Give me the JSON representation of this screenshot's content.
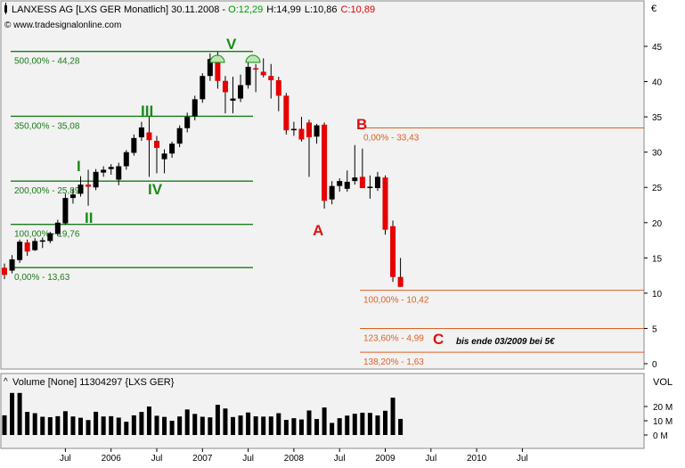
{
  "header": {
    "symbol_text": "LANXESS AG [LXS GER  Monatlich] 30.11.2008 - ",
    "open": "O:12,29",
    "high": "H:14,99",
    "low": "L:10,86",
    "close": "C:10,89",
    "source": "© www.tradesignalonline.com",
    "currency": "€"
  },
  "volume_panel": {
    "title": "Volume [None] 11304297 {LXS GER}",
    "axis_title": "VOL",
    "ticks": [
      "20 M",
      "10 M",
      "0 M"
    ]
  },
  "x_axis_labels": [
    "Jul",
    "2006",
    "Jul",
    "2007",
    "Jul",
    "2008",
    "Jul",
    "2009",
    "Jul",
    "2010",
    "Jul"
  ],
  "colors": {
    "up": "#000000",
    "down": "#e60000",
    "fib_left": "#1a7a1a",
    "fib_right": "#e06020",
    "wave_green": "#1a8a1a",
    "wave_red": "#dd1111",
    "panel_bg": "#f2f2f2"
  },
  "fib_left": [
    {
      "value": 44.28,
      "label": "500,00% - 44,28"
    },
    {
      "value": 35.08,
      "label": "350,00% - 35,08"
    },
    {
      "value": 25.89,
      "label": "200,00% - 25,89"
    },
    {
      "value": 19.76,
      "label": "100,00% - 19,76"
    },
    {
      "value": 13.63,
      "label": "0,00% - 13,63"
    }
  ],
  "fib_right": [
    {
      "value": 33.43,
      "label": "0,00% - 33,43"
    },
    {
      "value": 10.42,
      "label": "100,00% - 10,42"
    },
    {
      "value": 4.99,
      "label": "123,60% - 4,99"
    },
    {
      "value": 1.63,
      "label": "138,20% - 1,63"
    }
  ],
  "wave_labels_green": [
    "I",
    "II",
    "III",
    "IV",
    "V"
  ],
  "wave_labels_red": [
    "A",
    "B",
    "C"
  ],
  "note": "bis ende 03/2009 bei 5€",
  "chart_data": {
    "type": "candlestick",
    "price_axis": {
      "ylim": [
        0,
        46
      ],
      "ticks": [
        0,
        5,
        10,
        15,
        20,
        25,
        30,
        35,
        40,
        45
      ]
    },
    "ohlc": [
      {
        "o": 13.6,
        "h": 14.2,
        "l": 12.0,
        "c": 12.6
      },
      {
        "o": 13.2,
        "h": 15.4,
        "l": 12.8,
        "c": 14.8
      },
      {
        "o": 14.7,
        "h": 17.6,
        "l": 14.3,
        "c": 17.3
      },
      {
        "o": 17.2,
        "h": 17.6,
        "l": 15.3,
        "c": 15.9
      },
      {
        "o": 16.1,
        "h": 17.8,
        "l": 16.0,
        "c": 17.4
      },
      {
        "o": 17.3,
        "h": 17.9,
        "l": 16.4,
        "c": 17.5
      },
      {
        "o": 17.4,
        "h": 18.7,
        "l": 17.1,
        "c": 18.5
      },
      {
        "o": 18.4,
        "h": 20.4,
        "l": 18.1,
        "c": 20.0
      },
      {
        "o": 19.9,
        "h": 24.1,
        "l": 19.7,
        "c": 23.5
      },
      {
        "o": 23.5,
        "h": 24.8,
        "l": 22.7,
        "c": 24.0
      },
      {
        "o": 24.1,
        "h": 26.6,
        "l": 23.7,
        "c": 25.4
      },
      {
        "o": 25.4,
        "h": 27.5,
        "l": 22.4,
        "c": 25.1
      },
      {
        "o": 25.0,
        "h": 27.6,
        "l": 24.6,
        "c": 27.2
      },
      {
        "o": 27.1,
        "h": 28.0,
        "l": 26.5,
        "c": 27.5
      },
      {
        "o": 27.6,
        "h": 28.3,
        "l": 26.8,
        "c": 27.9
      },
      {
        "o": 26.1,
        "h": 28.5,
        "l": 25.3,
        "c": 28.0
      },
      {
        "o": 28.0,
        "h": 30.3,
        "l": 27.5,
        "c": 30.0
      },
      {
        "o": 29.9,
        "h": 32.5,
        "l": 29.5,
        "c": 32.0
      },
      {
        "o": 32.1,
        "h": 34.3,
        "l": 31.6,
        "c": 33.5
      },
      {
        "o": 32.8,
        "h": 35.0,
        "l": 26.5,
        "c": 31.7
      },
      {
        "o": 31.6,
        "h": 32.3,
        "l": 27.0,
        "c": 30.6
      },
      {
        "o": 29.0,
        "h": 30.4,
        "l": 27.0,
        "c": 29.8
      },
      {
        "o": 29.8,
        "h": 31.5,
        "l": 29.2,
        "c": 31.2
      },
      {
        "o": 31.2,
        "h": 33.8,
        "l": 30.7,
        "c": 33.4
      },
      {
        "o": 33.4,
        "h": 35.6,
        "l": 32.8,
        "c": 35.0
      },
      {
        "o": 35.1,
        "h": 38.0,
        "l": 34.5,
        "c": 37.5
      },
      {
        "o": 37.5,
        "h": 41.2,
        "l": 37.0,
        "c": 40.8
      },
      {
        "o": 40.8,
        "h": 44.0,
        "l": 40.1,
        "c": 43.2
      },
      {
        "o": 43.0,
        "h": 44.2,
        "l": 39.0,
        "c": 40.1
      },
      {
        "o": 40.1,
        "h": 40.8,
        "l": 35.5,
        "c": 38.5
      },
      {
        "o": 37.3,
        "h": 40.7,
        "l": 35.5,
        "c": 37.6
      },
      {
        "o": 37.6,
        "h": 41.0,
        "l": 37.1,
        "c": 39.5
      },
      {
        "o": 39.5,
        "h": 42.8,
        "l": 39.0,
        "c": 42.1
      },
      {
        "o": 41.9,
        "h": 42.5,
        "l": 38.5,
        "c": 41.7
      },
      {
        "o": 41.4,
        "h": 43.3,
        "l": 40.6,
        "c": 40.9
      },
      {
        "o": 40.8,
        "h": 42.5,
        "l": 37.6,
        "c": 40.2
      },
      {
        "o": 40.2,
        "h": 40.7,
        "l": 35.8,
        "c": 38.0
      },
      {
        "o": 38.0,
        "h": 38.4,
        "l": 32.5,
        "c": 33.1
      },
      {
        "o": 33.1,
        "h": 34.3,
        "l": 32.3,
        "c": 33.3
      },
      {
        "o": 33.3,
        "h": 35.0,
        "l": 31.5,
        "c": 31.8
      },
      {
        "o": 34.2,
        "h": 34.6,
        "l": 26.5,
        "c": 32.1
      },
      {
        "o": 32.2,
        "h": 34.0,
        "l": 31.2,
        "c": 33.8
      },
      {
        "o": 33.9,
        "h": 34.2,
        "l": 22.0,
        "c": 23.1
      },
      {
        "o": 23.3,
        "h": 25.9,
        "l": 22.6,
        "c": 25.2
      },
      {
        "o": 25.2,
        "h": 26.3,
        "l": 24.4,
        "c": 25.9
      },
      {
        "o": 24.8,
        "h": 27.4,
        "l": 24.4,
        "c": 25.8
      },
      {
        "o": 25.9,
        "h": 31.0,
        "l": 25.4,
        "c": 26.4
      },
      {
        "o": 26.5,
        "h": 30.5,
        "l": 24.9,
        "c": 24.9
      },
      {
        "o": 24.9,
        "h": 26.7,
        "l": 23.4,
        "c": 25.1
      },
      {
        "o": 24.9,
        "h": 27.2,
        "l": 24.5,
        "c": 26.5
      },
      {
        "o": 26.4,
        "h": 26.7,
        "l": 18.3,
        "c": 19.0
      },
      {
        "o": 19.5,
        "h": 20.3,
        "l": 11.6,
        "c": 12.3
      },
      {
        "o": 12.3,
        "h": 15.0,
        "l": 10.9,
        "c": 10.9
      }
    ],
    "volume_millions": [
      13.8,
      29.5,
      29.5,
      16.2,
      15.3,
      12.8,
      12.5,
      13.2,
      16.7,
      13.0,
      12.1,
      10.5,
      16.3,
      13.0,
      13.2,
      12.2,
      9.3,
      13.8,
      16.2,
      20.0,
      13.5,
      12.7,
      10.0,
      13.0,
      17.9,
      14.8,
      12.8,
      12.4,
      21.2,
      18.6,
      12.6,
      13.7,
      15.8,
      13.1,
      12.9,
      13.0,
      15.3,
      10.6,
      11.8,
      10.9,
      17.2,
      11.2,
      19.3,
      8.5,
      11.8,
      13.6,
      14.9,
      15.6,
      15.5,
      13.7,
      17.0,
      26.2,
      11.3
    ],
    "volume_axis": {
      "ylim": [
        0,
        30
      ],
      "ticks": [
        0,
        10,
        20
      ]
    }
  }
}
